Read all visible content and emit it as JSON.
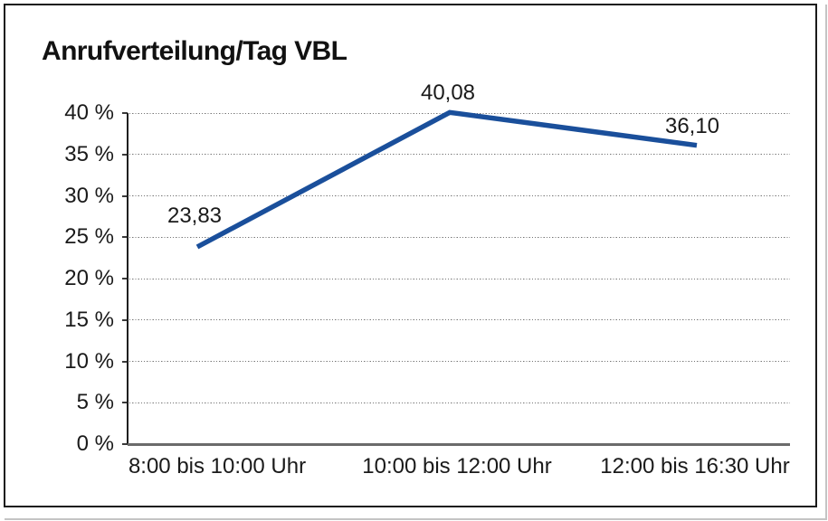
{
  "chart_data": {
    "type": "line",
    "title": "Anrufverteilung/Tag VBL",
    "categories": [
      "8:00 bis 10:00 Uhr",
      "10:00 bis 12:00 Uhr",
      "12:00 bis 16:30 Uhr"
    ],
    "values": [
      23.83,
      40.08,
      36.1
    ],
    "data_labels": [
      "23,83",
      "40,08",
      "36,10"
    ],
    "xlabel": "",
    "ylabel": "",
    "ylim": [
      0,
      40
    ],
    "ytick_step": 5,
    "ytick_labels": [
      "0 %",
      "5 %",
      "10 %",
      "15 %",
      "20 %",
      "25 %",
      "30 %",
      "35 %",
      "40 %"
    ],
    "grid": "horizontal-dotted",
    "legend": "none",
    "series_color": "#1A4F9B",
    "text_color": "#1A1A1A",
    "background": "#FFFFFF",
    "frame_color": "#1A1A1A"
  }
}
